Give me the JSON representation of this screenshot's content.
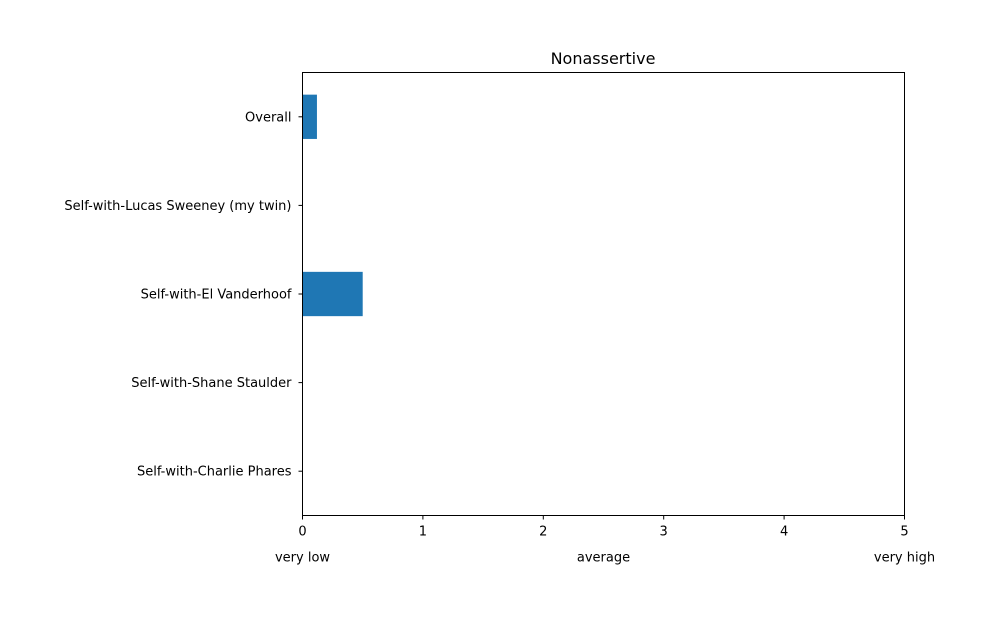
{
  "chart_data": {
    "type": "bar",
    "orientation": "horizontal",
    "title": "Nonassertive",
    "categories": [
      "Overall",
      "Self-with-Lucas Sweeney (my twin)",
      "Self-with-El Vanderhoof",
      "Self-with-Shane Staulder",
      "Self-with-Charlie Phares"
    ],
    "values": [
      0.12,
      0,
      0.5,
      0,
      0
    ],
    "xlim": [
      0,
      5
    ],
    "xticks": [
      0,
      1,
      2,
      3,
      4,
      5
    ],
    "xtick_labels": [
      "0",
      "1",
      "2",
      "3",
      "4",
      "5"
    ],
    "scale_labels": [
      {
        "value": 0,
        "text": "very low"
      },
      {
        "value": 2.5,
        "text": "average"
      },
      {
        "value": 5,
        "text": "very high"
      }
    ],
    "xlabel": "",
    "ylabel": "",
    "grid": false,
    "bar_color": "#1f77b4"
  }
}
